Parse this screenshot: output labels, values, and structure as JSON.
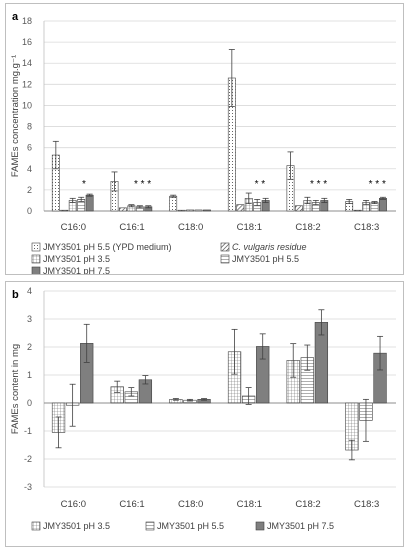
{
  "colors": {
    "bar_edge": "#404040",
    "ph75_fill": "#7f7f7f",
    "grid": "#d9d9d9",
    "error_bar": "#404040"
  },
  "chart_data": [
    {
      "type": "bar",
      "panel_label": "a",
      "ylabel": "FAMEs concentration mg.g⁻¹",
      "ylim": [
        0,
        18
      ],
      "yticks": [
        0,
        2,
        4,
        6,
        8,
        10,
        12,
        14,
        16,
        18
      ],
      "grid": true,
      "legend_position": "bottom",
      "categories": [
        "C16:0",
        "C16:1",
        "C18:0",
        "C18:1",
        "C18:2",
        "C18:3"
      ],
      "series": [
        {
          "name": "JMY3501 pH 5.5 (YPD medium)",
          "pattern": "dots",
          "values": [
            5.3,
            2.8,
            1.4,
            12.6,
            4.3,
            0.9
          ],
          "errors": [
            1.3,
            0.9,
            0.1,
            2.7,
            1.3,
            0.2
          ]
        },
        {
          "name": "C. vulgaris residue",
          "pattern": "diagonal",
          "italic": true,
          "values": [
            0.0,
            0.3,
            0.05,
            0.6,
            0.5,
            0.0
          ],
          "errors": [
            0,
            0,
            0,
            0,
            0,
            0
          ]
        },
        {
          "name": "JMY3501 pH 3.5",
          "pattern": "grid",
          "values": [
            1.0,
            0.5,
            0.1,
            1.2,
            1.0,
            0.8
          ],
          "errors": [
            0.2,
            0.1,
            0,
            0.5,
            0.3,
            0.2
          ]
        },
        {
          "name": "JMY3501 pH 5.5",
          "pattern": "hlines",
          "values": [
            1.1,
            0.4,
            0.1,
            0.8,
            0.8,
            0.8
          ],
          "errors": [
            0.2,
            0.1,
            0,
            0.3,
            0.2,
            0.1
          ]
        },
        {
          "name": "JMY3501 pH 7.5",
          "pattern": "solid",
          "values": [
            1.5,
            0.4,
            0.1,
            1.0,
            1.0,
            1.2
          ],
          "errors": [
            0.1,
            0.1,
            0,
            0.2,
            0.2,
            0.1
          ]
        }
      ],
      "significance": [
        {
          "category": "C16:0",
          "text": "*"
        },
        {
          "category": "C16:1",
          "text": "* * *"
        },
        {
          "category": "C18:1",
          "text": "*        *"
        },
        {
          "category": "C18:2",
          "text": "* * *"
        },
        {
          "category": "C18:3",
          "text": "* * *"
        }
      ]
    },
    {
      "type": "bar",
      "panel_label": "b",
      "ylabel": "FAMEs content in mg",
      "ylim": [
        -3,
        4
      ],
      "yticks": [
        -3,
        -2,
        -1,
        0,
        1,
        2,
        3,
        4
      ],
      "grid": true,
      "legend_position": "bottom",
      "categories": [
        "C16:0",
        "C16:1",
        "C18:0",
        "C18:1",
        "C18:2",
        "C18:3"
      ],
      "series": [
        {
          "name": "JMY3501 pH 3.5",
          "pattern": "grid",
          "values": [
            -1.05,
            0.58,
            0.13,
            1.83,
            1.52,
            -1.68
          ],
          "errors": [
            0.55,
            0.2,
            0.03,
            0.8,
            0.6,
            0.35
          ]
        },
        {
          "name": "JMY3501 pH 5.5",
          "pattern": "hlines",
          "values": [
            -0.08,
            0.4,
            0.1,
            0.25,
            1.62,
            -0.62
          ],
          "errors": [
            0.75,
            0.15,
            0.03,
            0.3,
            0.45,
            0.75
          ]
        },
        {
          "name": "JMY3501 pH 7.5",
          "pattern": "solid",
          "values": [
            2.13,
            0.83,
            0.13,
            2.02,
            2.88,
            1.78
          ],
          "errors": [
            0.68,
            0.15,
            0.03,
            0.45,
            0.45,
            0.6
          ]
        }
      ]
    }
  ]
}
